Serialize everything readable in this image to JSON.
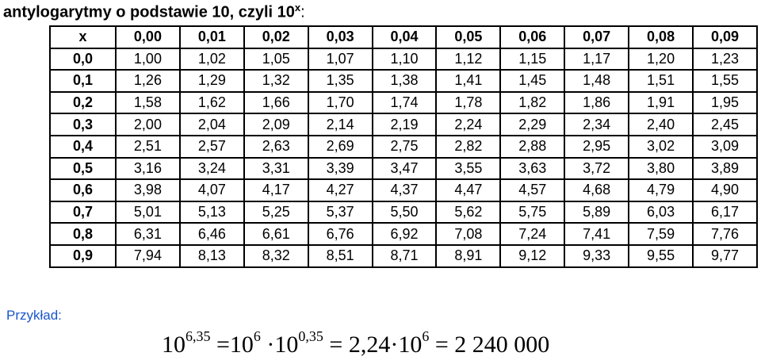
{
  "title": {
    "text": "antylogarytmy o podstawie 10, czyli 10",
    "sup": "x",
    "end": ":"
  },
  "table": {
    "header": [
      "x",
      "0,00",
      "0,01",
      "0,02",
      "0,03",
      "0,04",
      "0,05",
      "0,06",
      "0,07",
      "0,08",
      "0,09"
    ],
    "rows": [
      [
        "0,0",
        "1,00",
        "1,02",
        "1,05",
        "1,07",
        "1,10",
        "1,12",
        "1,15",
        "1,17",
        "1,20",
        "1,23"
      ],
      [
        "0,1",
        "1,26",
        "1,29",
        "1,32",
        "1,35",
        "1,38",
        "1,41",
        "1,45",
        "1,48",
        "1,51",
        "1,55"
      ],
      [
        "0,2",
        "1,58",
        "1,62",
        "1,66",
        "1,70",
        "1,74",
        "1,78",
        "1,82",
        "1,86",
        "1,91",
        "1,95"
      ],
      [
        "0,3",
        "2,00",
        "2,04",
        "2,09",
        "2,14",
        "2,19",
        "2,24",
        "2,29",
        "2,34",
        "2,40",
        "2,45"
      ],
      [
        "0,4",
        "2,51",
        "2,57",
        "2,63",
        "2,69",
        "2,75",
        "2,82",
        "2,88",
        "2,95",
        "3,02",
        "3,09"
      ],
      [
        "0,5",
        "3,16",
        "3,24",
        "3,31",
        "3,39",
        "3,47",
        "3,55",
        "3,63",
        "3,72",
        "3,80",
        "3,89"
      ],
      [
        "0,6",
        "3,98",
        "4,07",
        "4,17",
        "4,27",
        "4,37",
        "4,47",
        "4,57",
        "4,68",
        "4,79",
        "4,90"
      ],
      [
        "0,7",
        "5,01",
        "5,13",
        "5,25",
        "5,37",
        "5,50",
        "5,62",
        "5,75",
        "5,89",
        "6,03",
        "6,17"
      ],
      [
        "0,8",
        "6,31",
        "6,46",
        "6,61",
        "6,76",
        "6,92",
        "7,08",
        "7,24",
        "7,41",
        "7,59",
        "7,76"
      ],
      [
        "0,9",
        "7,94",
        "8,13",
        "8,32",
        "8,51",
        "8,71",
        "8,91",
        "9,12",
        "9,33",
        "9,55",
        "9,77"
      ]
    ]
  },
  "example": {
    "label": "Przykład:",
    "formula": [
      {
        "base": "10",
        "exp": "6,35"
      },
      {
        "base": " =10",
        "exp": "6"
      },
      {
        "base": " ·10",
        "exp": "0,35"
      },
      {
        "base": " = 2,24·10",
        "exp": "6"
      },
      {
        "base": " = 2 240 000"
      }
    ]
  }
}
